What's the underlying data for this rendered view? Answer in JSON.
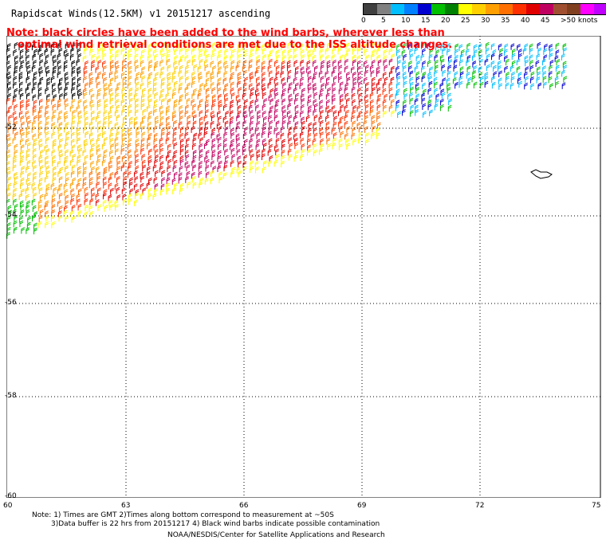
{
  "title": "Rapidscat Winds(12.5KM) v1 20151217 ascending",
  "note_line1": "Note: black circles have been added to the wind barbs, wherever less than",
  "note_line2": "optimal wind retrieval conditions are met due to the ISS altitude changes.",
  "legend": {
    "labels": [
      "0",
      "5",
      "10",
      "15",
      "20",
      "25",
      "30",
      "35",
      "40",
      "45",
      ">50 knots"
    ],
    "colors": [
      "#404040",
      "#808080",
      "#00bfff",
      "#0080ff",
      "#0000d0",
      "#00c000",
      "#008000",
      "#ffff00",
      "#ffd000",
      "#ffa000",
      "#ff7000",
      "#ff3000",
      "#e00000",
      "#c00060",
      "#a05030",
      "#804020",
      "#ff00ff",
      "#c000ff",
      "#8000c0",
      "#400080"
    ]
  },
  "axes": {
    "x_ticks": [
      "60",
      "63",
      "66",
      "69",
      "72",
      "75"
    ],
    "y_ticks": [
      "-52",
      "-54",
      "-56",
      "-58",
      "-60"
    ]
  },
  "footer": {
    "line1": "Note: 1) Times are GMT 2)Times along bottom correspond to measurement at ~50S",
    "line2": "3)Data buffer is 22 hrs from 20151217 4) Black wind barbs indicate possible contamination",
    "line3": "NOAA/NESDIS/Center for Satellite Applications and Research"
  }
}
